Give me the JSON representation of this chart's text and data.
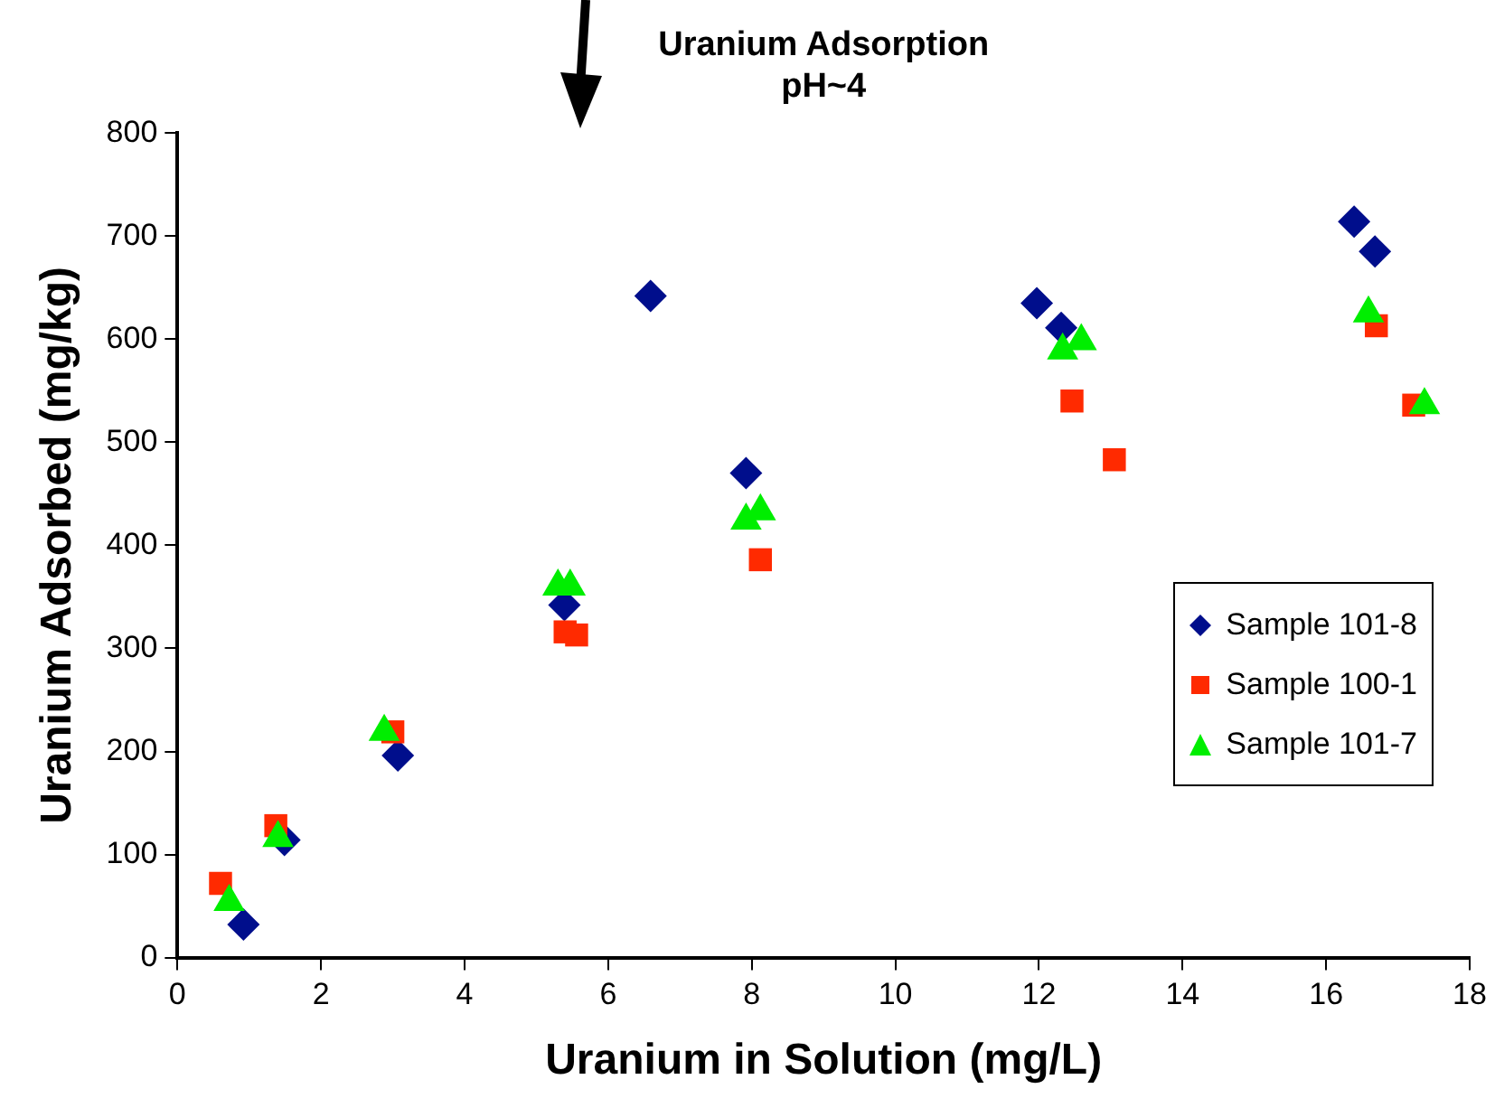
{
  "chart_data": {
    "type": "scatter",
    "title": "Uranium Adsorption\npH~4",
    "xlabel": "Uranium in Solution (mg/L)",
    "ylabel": "Uranium Adsorbed (mg/kg)",
    "xlim": [
      0,
      18
    ],
    "xticks": [
      0,
      2,
      4,
      6,
      8,
      10,
      12,
      14,
      16,
      18
    ],
    "ylim": [
      0,
      800
    ],
    "yticks": [
      0,
      100,
      200,
      300,
      400,
      500,
      600,
      700,
      800
    ],
    "grid": false,
    "legend": "right",
    "series": [
      {
        "name": "Sample 101-8",
        "color": "#000e8c",
        "marker": "diamond",
        "x": [
          0.92,
          1.49,
          3.07,
          5.39,
          6.59,
          7.92,
          11.97,
          12.31,
          16.39,
          16.68
        ],
        "values": [
          32,
          114,
          196,
          342,
          642,
          470,
          635,
          611,
          714,
          685
        ]
      },
      {
        "name": "Sample 100-1",
        "color": "#ff2a00",
        "marker": "square",
        "x": [
          0.6,
          1.37,
          3.0,
          5.4,
          5.56,
          8.12,
          12.46,
          13.05,
          16.7,
          17.22
        ],
        "values": [
          72,
          128,
          219,
          316,
          313,
          386,
          540,
          483,
          613,
          536
        ]
      },
      {
        "name": "Sample 101-7",
        "color": "#00ee00",
        "marker": "triangle",
        "x": [
          0.72,
          1.4,
          2.88,
          5.3,
          5.47,
          7.92,
          8.12,
          12.33,
          12.59,
          16.59,
          17.37
        ],
        "values": [
          54,
          116,
          219,
          360,
          360,
          424,
          433,
          589,
          598,
          625,
          536
        ]
      }
    ]
  }
}
